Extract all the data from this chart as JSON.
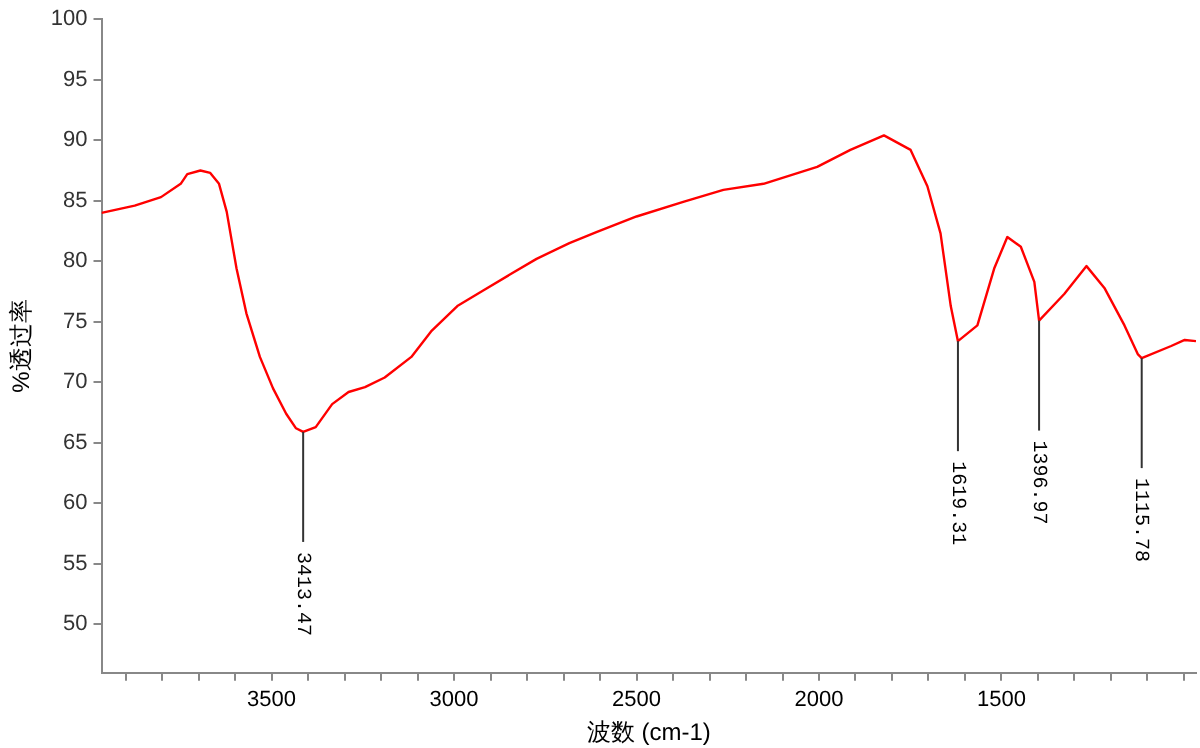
{
  "chart_data": {
    "type": "line",
    "xlabel": "波数 (cm-1)",
    "ylabel": "%透过率",
    "xlim": [
      3966,
      967
    ],
    "ylim": [
      46,
      100
    ],
    "xticks": [
      {
        "value": 3900,
        "label": null
      },
      {
        "value": 3800,
        "label": null
      },
      {
        "value": 3700,
        "label": null
      },
      {
        "value": 3600,
        "label": null
      },
      3500,
      {
        "value": 3400,
        "label": null
      },
      {
        "value": 3300,
        "label": null
      },
      {
        "value": 3200,
        "label": null
      },
      {
        "value": 3100,
        "label": null
      },
      3000,
      {
        "value": 2900,
        "label": null
      },
      {
        "value": 2800,
        "label": null
      },
      {
        "value": 2700,
        "label": null
      },
      {
        "value": 2600,
        "label": null
      },
      2500,
      {
        "value": 2400,
        "label": null
      },
      {
        "value": 2300,
        "label": null
      },
      {
        "value": 2200,
        "label": null
      },
      {
        "value": 2100,
        "label": null
      },
      2000,
      {
        "value": 1900,
        "label": null
      },
      {
        "value": 1800,
        "label": null
      },
      {
        "value": 1700,
        "label": null
      },
      {
        "value": 1600,
        "label": null
      },
      1500,
      {
        "value": 1400,
        "label": null
      },
      {
        "value": 1300,
        "label": null
      },
      {
        "value": 1200,
        "label": null
      },
      {
        "value": 1100,
        "label": null
      },
      {
        "value": 1000,
        "label": null
      }
    ],
    "yticks": [
      50,
      55,
      60,
      65,
      70,
      75,
      80,
      85,
      90,
      95,
      100
    ],
    "grid": false,
    "legend": false,
    "marker": "none",
    "line_style": "solid",
    "series": [
      {
        "color": "#ff0000",
        "x": [
          3966,
          3875,
          3803,
          3749,
          3731,
          3695,
          3668,
          3644,
          3623,
          3596,
          3569,
          3532,
          3496,
          3460,
          3433,
          3413.47,
          3379,
          3334,
          3289,
          3244,
          3190,
          3117,
          3063,
          2991,
          2919,
          2847,
          2774,
          2684,
          2610,
          2500,
          2372,
          2262,
          2152,
          2005,
          1914,
          1822,
          1749,
          1703,
          1667,
          1639,
          1619.31,
          1566,
          1520,
          1484,
          1447,
          1410,
          1396.97,
          1328,
          1267,
          1218,
          1163,
          1126,
          1115.78,
          1035,
          998,
          967
        ],
        "values": [
          84.0,
          84.6,
          85.3,
          86.4,
          87.2,
          87.5,
          87.3,
          86.4,
          84.1,
          79.4,
          75.7,
          72.1,
          69.5,
          67.4,
          66.2,
          65.9,
          66.3,
          68.2,
          69.2,
          69.6,
          70.4,
          72.1,
          74.2,
          76.3,
          77.6,
          78.9,
          80.2,
          81.5,
          82.4,
          83.7,
          84.9,
          85.9,
          86.4,
          87.8,
          89.2,
          90.4,
          89.2,
          86.2,
          82.3,
          76.3,
          73.4,
          74.7,
          79.4,
          82.0,
          81.2,
          78.3,
          75.1,
          77.3,
          79.6,
          77.8,
          74.7,
          72.3,
          72.0,
          73.0,
          73.5,
          73.4
        ]
      }
    ],
    "annotations": [
      {
        "text": "3413.47",
        "x": 3413.47,
        "y": 65.9
      },
      {
        "text": "1619.31",
        "x": 1619.31,
        "y": 73.4
      },
      {
        "text": "1396.97",
        "x": 1396.97,
        "y": 75.1
      },
      {
        "text": "1115.78",
        "x": 1115.78,
        "y": 72.0
      }
    ]
  }
}
